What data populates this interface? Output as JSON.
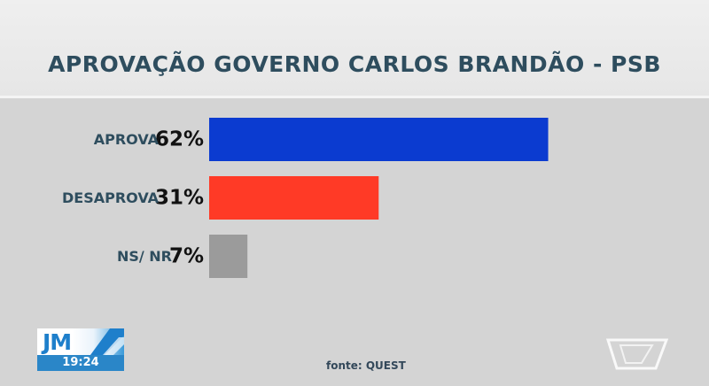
{
  "title": "APROVAÇÃO GOVERNO CARLOS BRANDÃO - PSB",
  "source": "fonte: QUEST",
  "broadcast": {
    "logo_text": "JM",
    "time": "19:24"
  },
  "chart_data": {
    "type": "bar",
    "orientation": "horizontal",
    "categories": [
      "APROVA",
      "DESAPROVA",
      "NS/ NR"
    ],
    "values": [
      62,
      31,
      7
    ],
    "value_labels": [
      "62%",
      "31%",
      "7%"
    ],
    "colors": [
      "#0b3bd0",
      "#ff3a26",
      "#9b9b9b"
    ],
    "xlim": [
      0,
      100
    ],
    "grid": false,
    "legend": "none"
  }
}
